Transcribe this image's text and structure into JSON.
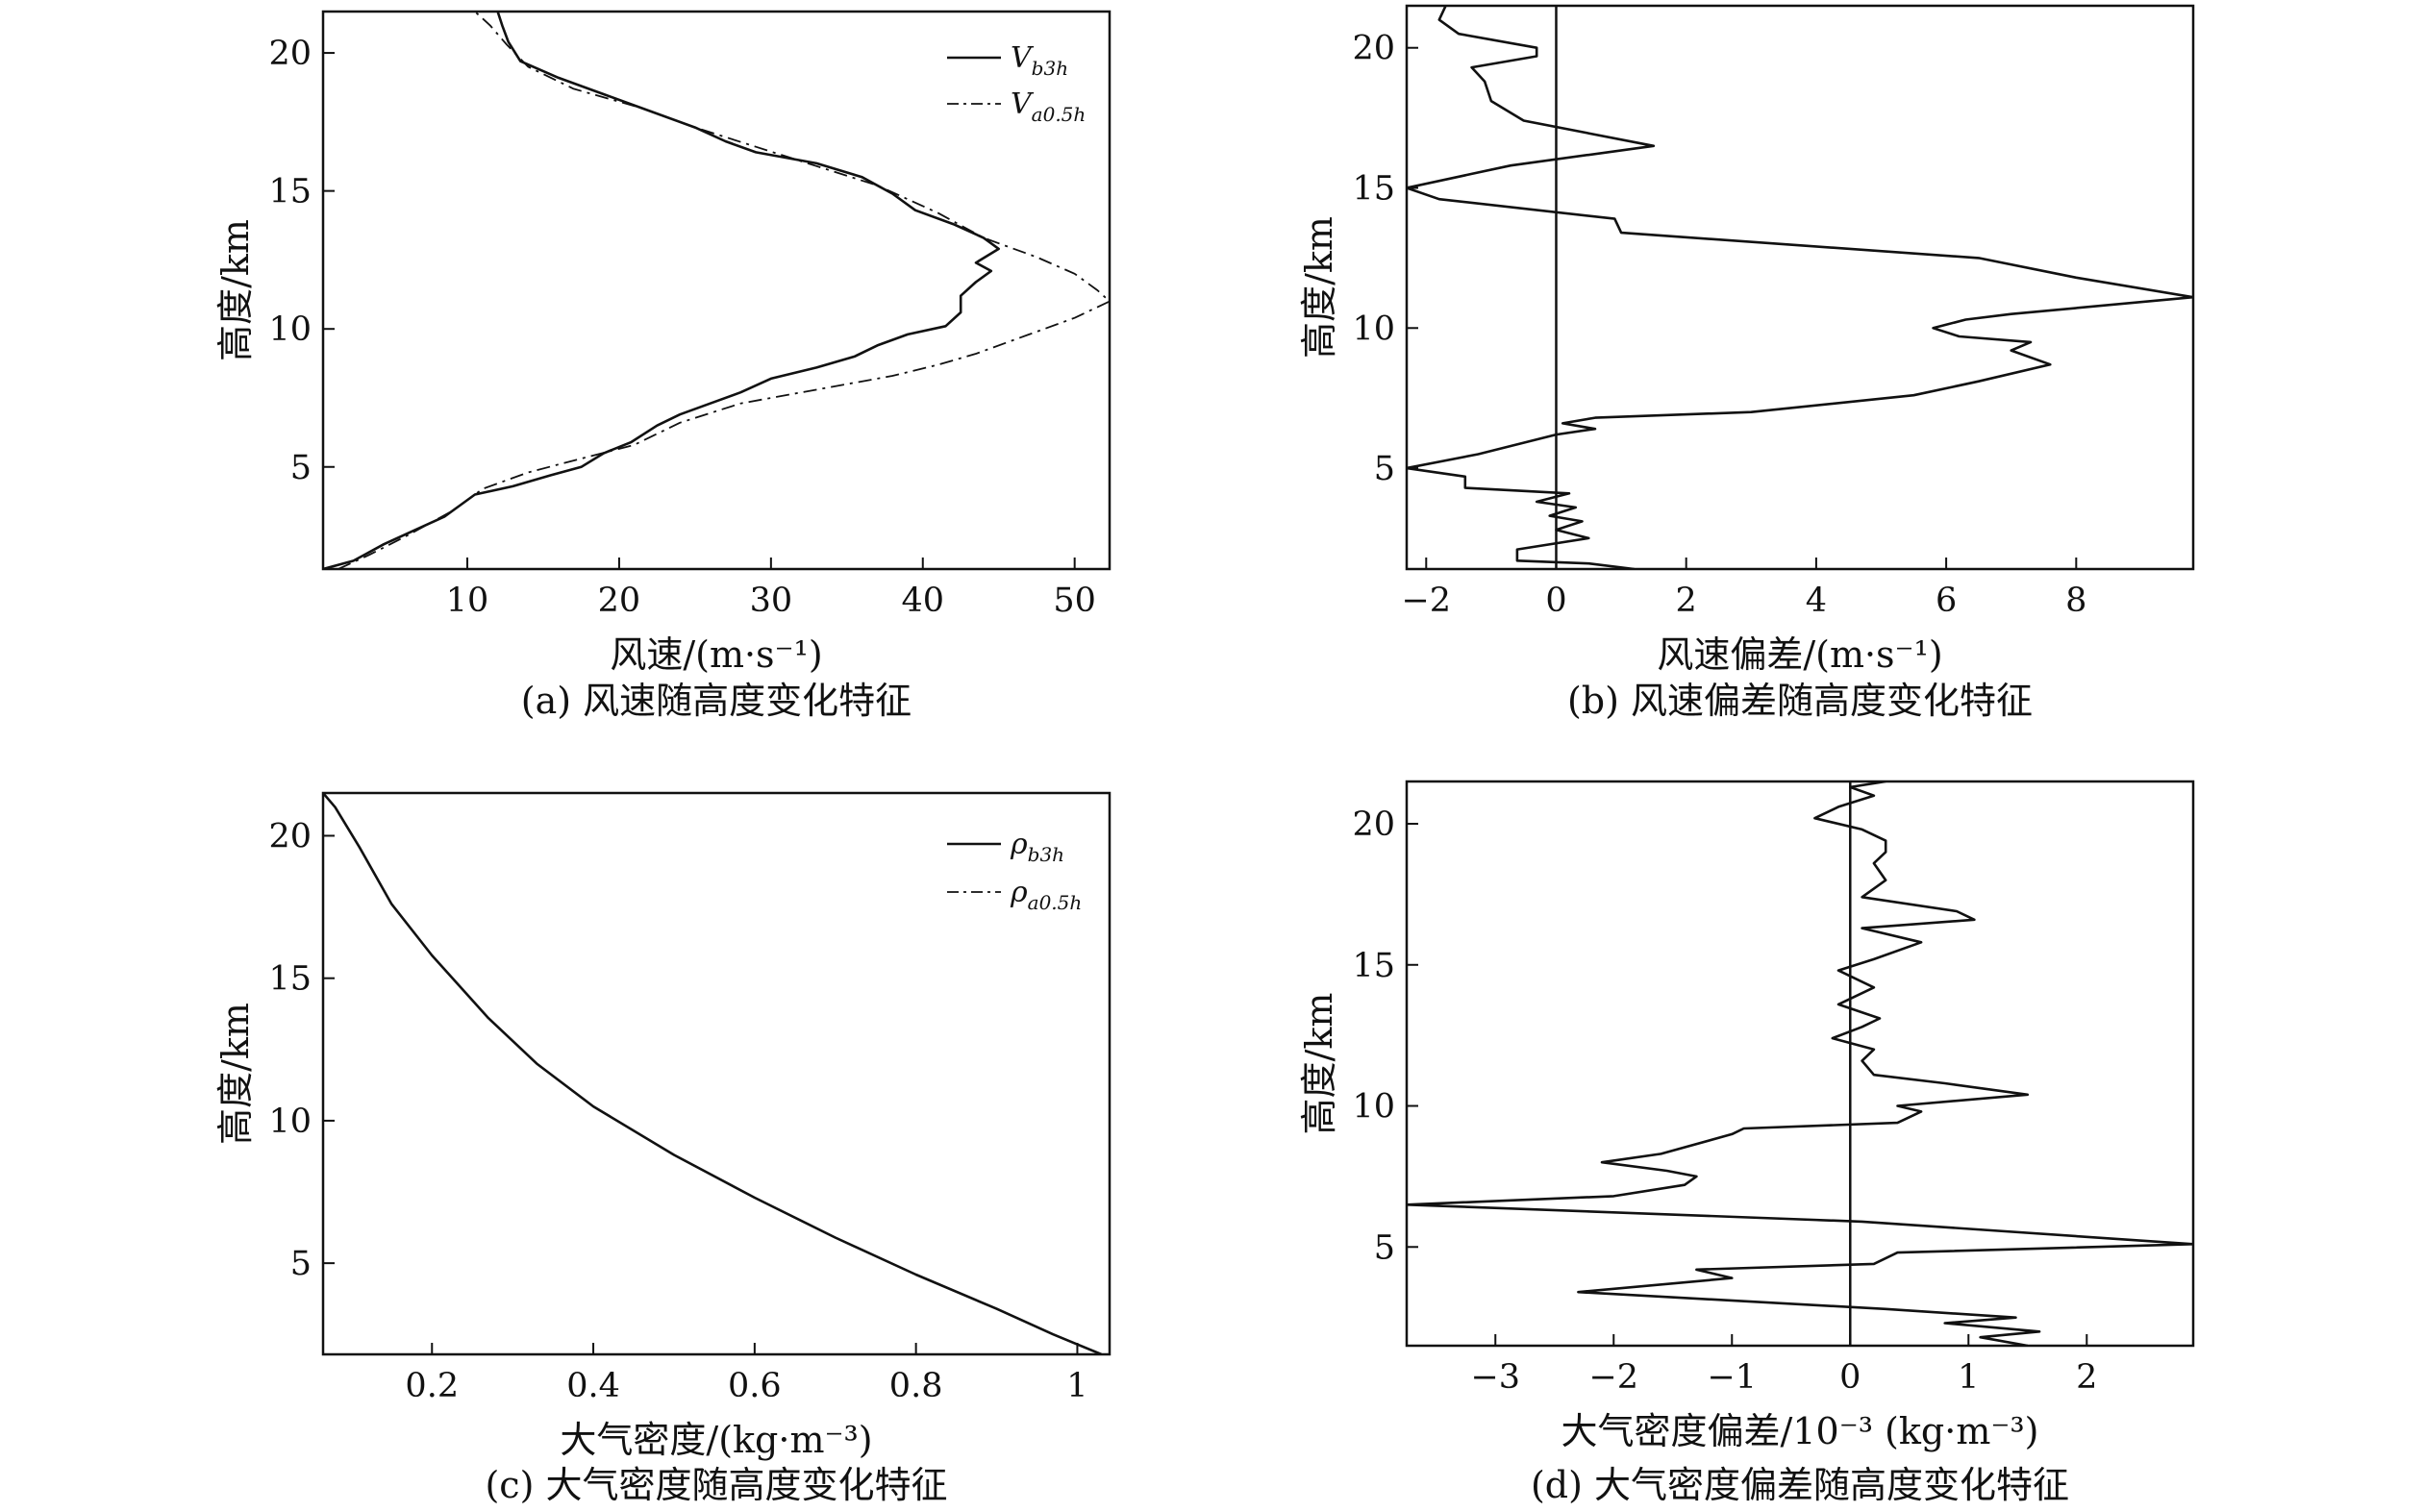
{
  "chart_data": [
    {
      "id": "a",
      "type": "line",
      "caption": "(a) 风速随高度变化特征",
      "xlabel": "风速/(m·s⁻¹)",
      "ylabel": "高度/km",
      "xlim": [
        0.5,
        52.3
      ],
      "ylim": [
        1.3,
        21.5
      ],
      "xticks": [
        10,
        20,
        30,
        40,
        50
      ],
      "yticks": [
        5,
        10,
        15,
        20
      ],
      "grid": false,
      "legend_position": "top-right",
      "series": [
        {
          "name": "Vb3h",
          "legend_main": "V",
          "legend_sub": "b3h",
          "style": "solid",
          "color": "#111111",
          "points": [
            [
              0.5,
              1.3
            ],
            [
              2.5,
              1.6
            ],
            [
              4.5,
              2.2
            ],
            [
              6.5,
              2.7
            ],
            [
              8.5,
              3.2
            ],
            [
              9.5,
              3.6
            ],
            [
              10.5,
              4.0
            ],
            [
              13,
              4.3
            ],
            [
              15.5,
              4.7
            ],
            [
              17.5,
              5.0
            ],
            [
              19,
              5.5
            ],
            [
              20.8,
              5.9
            ],
            [
              22.5,
              6.5
            ],
            [
              24,
              6.9
            ],
            [
              26,
              7.3
            ],
            [
              28,
              7.7
            ],
            [
              30,
              8.2
            ],
            [
              33,
              8.6
            ],
            [
              35.5,
              9.0
            ],
            [
              37,
              9.4
            ],
            [
              39,
              9.8
            ],
            [
              41.5,
              10.1
            ],
            [
              42.5,
              10.6
            ],
            [
              42.5,
              11.2
            ],
            [
              43.5,
              11.7
            ],
            [
              44.5,
              12.1
            ],
            [
              43.5,
              12.4
            ],
            [
              45,
              12.9
            ],
            [
              44,
              13.3
            ],
            [
              42,
              13.8
            ],
            [
              39.5,
              14.3
            ],
            [
              38,
              14.9
            ],
            [
              36,
              15.5
            ],
            [
              33,
              16.0
            ],
            [
              29,
              16.4
            ],
            [
              27,
              16.8
            ],
            [
              25,
              17.3
            ],
            [
              22,
              17.9
            ],
            [
              19,
              18.5
            ],
            [
              16,
              19.1
            ],
            [
              13.5,
              19.7
            ],
            [
              12.7,
              20.4
            ],
            [
              12.3,
              21.0
            ],
            [
              12,
              21.5
            ]
          ]
        },
        {
          "name": "Va0.5h",
          "legend_main": "V",
          "legend_sub": "a0.5h",
          "style": "dashdot",
          "color": "#111111",
          "points": [
            [
              1.5,
              1.3
            ],
            [
              3.5,
              1.8
            ],
            [
              6,
              2.5
            ],
            [
              9,
              3.4
            ],
            [
              11,
              4.2
            ],
            [
              14,
              4.8
            ],
            [
              17.5,
              5.3
            ],
            [
              21,
              5.8
            ],
            [
              24,
              6.6
            ],
            [
              28,
              7.3
            ],
            [
              34,
              7.9
            ],
            [
              38,
              8.3
            ],
            [
              41,
              8.7
            ],
            [
              43.5,
              9.1
            ],
            [
              47,
              9.8
            ],
            [
              50,
              10.4
            ],
            [
              52.3,
              11.0
            ],
            [
              51.5,
              11.4
            ],
            [
              50,
              12.0
            ],
            [
              47.5,
              12.6
            ],
            [
              44,
              13.3
            ],
            [
              41,
              14.2
            ],
            [
              37,
              15.2
            ],
            [
              33,
              15.9
            ],
            [
              29,
              16.6
            ],
            [
              25,
              17.3
            ],
            [
              21.5,
              18.0
            ],
            [
              17,
              18.7
            ],
            [
              14,
              19.5
            ],
            [
              12.6,
              20.3
            ],
            [
              11.5,
              21.0
            ],
            [
              10.5,
              21.5
            ]
          ]
        }
      ]
    },
    {
      "id": "b",
      "type": "line",
      "caption": "(b) 风速偏差随高度变化特征",
      "xlabel": "风速偏差/(m·s⁻¹)",
      "ylabel": "高度/km",
      "xlim": [
        -2.3,
        9.8
      ],
      "ylim": [
        1.4,
        21.5
      ],
      "xticks": [
        -2,
        0,
        2,
        4,
        6,
        8
      ],
      "yticks": [
        5,
        10,
        15,
        20
      ],
      "grid": false,
      "reference_line_x": 0,
      "series": [
        {
          "name": "风速偏差",
          "style": "solid",
          "color": "#111111",
          "points": [
            [
              1.2,
              1.4
            ],
            [
              0.5,
              1.6
            ],
            [
              -0.6,
              1.7
            ],
            [
              -0.6,
              2.1
            ],
            [
              0.5,
              2.5
            ],
            [
              0,
              2.8
            ],
            [
              0.4,
              3.1
            ],
            [
              -0.1,
              3.3
            ],
            [
              0.3,
              3.6
            ],
            [
              -0.3,
              3.8
            ],
            [
              0.2,
              4.1
            ],
            [
              -1.4,
              4.3
            ],
            [
              -1.4,
              4.7
            ],
            [
              -2.3,
              5.0
            ],
            [
              -1.2,
              5.5
            ],
            [
              0,
              6.2
            ],
            [
              0.6,
              6.4
            ],
            [
              0.1,
              6.6
            ],
            [
              0.6,
              6.8
            ],
            [
              3,
              7.0
            ],
            [
              5.5,
              7.6
            ],
            [
              6.5,
              8.1
            ],
            [
              7.6,
              8.7
            ],
            [
              7,
              9.2
            ],
            [
              7.3,
              9.5
            ],
            [
              6.2,
              9.7
            ],
            [
              5.8,
              10.0
            ],
            [
              6.3,
              10.3
            ],
            [
              7,
              10.5
            ],
            [
              9.8,
              11.1
            ],
            [
              8,
              11.8
            ],
            [
              6.5,
              12.5
            ],
            [
              1,
              13.4
            ],
            [
              0.9,
              13.9
            ],
            [
              -1.8,
              14.6
            ],
            [
              -2.3,
              15.0
            ],
            [
              -1.3,
              15.5
            ],
            [
              -0.7,
              15.8
            ],
            [
              1.5,
              16.5
            ],
            [
              -0.5,
              17.4
            ],
            [
              -1,
              18.1
            ],
            [
              -1.1,
              18.8
            ],
            [
              -1.3,
              19.3
            ],
            [
              -0.3,
              19.7
            ],
            [
              -0.3,
              20.0
            ],
            [
              -1.5,
              20.5
            ],
            [
              -1.8,
              21.0
            ],
            [
              -1.7,
              21.5
            ]
          ]
        }
      ]
    },
    {
      "id": "c",
      "type": "line",
      "caption": "(c) 大气密度随高度变化特征",
      "xlabel": "大气密度/(kg·m⁻³)",
      "ylabel": "高度/km",
      "xlim": [
        0.065,
        1.04
      ],
      "ylim": [
        1.8,
        21.5
      ],
      "xticks": [
        0.2,
        0.4,
        0.6,
        0.8,
        1.0
      ],
      "yticks": [
        5,
        10,
        15,
        20
      ],
      "grid": false,
      "legend_position": "top-right",
      "series": [
        {
          "name": "ρb3h",
          "legend_main": "ρ",
          "legend_sub": "b3h",
          "style": "solid",
          "color": "#111111",
          "points": [
            [
              1.03,
              1.8
            ],
            [
              0.97,
              2.5
            ],
            [
              0.9,
              3.4
            ],
            [
              0.8,
              4.6
            ],
            [
              0.7,
              5.9
            ],
            [
              0.6,
              7.3
            ],
            [
              0.5,
              8.8
            ],
            [
              0.4,
              10.5
            ],
            [
              0.33,
              12.0
            ],
            [
              0.27,
              13.6
            ],
            [
              0.2,
              15.8
            ],
            [
              0.15,
              17.6
            ],
            [
              0.11,
              19.6
            ],
            [
              0.08,
              21.0
            ],
            [
              0.065,
              21.5
            ]
          ]
        },
        {
          "name": "ρa0.5h",
          "legend_main": "ρ",
          "legend_sub": "a0.5h",
          "style": "dashdot",
          "color": "#111111",
          "points": [
            [
              1.03,
              1.8
            ],
            [
              0.97,
              2.5
            ],
            [
              0.9,
              3.4
            ],
            [
              0.8,
              4.6
            ],
            [
              0.7,
              5.9
            ],
            [
              0.6,
              7.3
            ],
            [
              0.5,
              8.8
            ],
            [
              0.4,
              10.5
            ],
            [
              0.33,
              12.0
            ],
            [
              0.27,
              13.6
            ],
            [
              0.2,
              15.8
            ],
            [
              0.15,
              17.6
            ],
            [
              0.11,
              19.6
            ],
            [
              0.08,
              21.0
            ],
            [
              0.065,
              21.5
            ]
          ]
        }
      ]
    },
    {
      "id": "d",
      "type": "line",
      "caption": "(d) 大气密度偏差随高度变化特征",
      "xlabel": "大气密度偏差/10⁻³ (kg·m⁻³)",
      "ylabel": "高度/km",
      "xlim": [
        -3.75,
        2.9
      ],
      "ylim": [
        1.5,
        21.5
      ],
      "xticks": [
        -3,
        -2,
        -1,
        0,
        1,
        2
      ],
      "yticks": [
        5,
        10,
        15,
        20
      ],
      "grid": false,
      "reference_line_x": 0,
      "series": [
        {
          "name": "大气密度偏差",
          "style": "solid",
          "color": "#111111",
          "points": [
            [
              1.5,
              1.5
            ],
            [
              1.1,
              1.8
            ],
            [
              1.6,
              2.0
            ],
            [
              0.8,
              2.3
            ],
            [
              1.4,
              2.5
            ],
            [
              0.3,
              2.8
            ],
            [
              -2.3,
              3.4
            ],
            [
              -1,
              3.9
            ],
            [
              -1.3,
              4.2
            ],
            [
              0.2,
              4.4
            ],
            [
              0.4,
              4.8
            ],
            [
              2.9,
              5.1
            ],
            [
              0.1,
              5.9
            ],
            [
              -3.75,
              6.5
            ],
            [
              -2,
              6.8
            ],
            [
              -1.4,
              7.2
            ],
            [
              -1.3,
              7.5
            ],
            [
              -1.55,
              7.7
            ],
            [
              -2.1,
              8.0
            ],
            [
              -1.6,
              8.3
            ],
            [
              -1,
              9.0
            ],
            [
              -0.9,
              9.2
            ],
            [
              0.4,
              9.4
            ],
            [
              0.6,
              9.8
            ],
            [
              0.4,
              10.0
            ],
            [
              1.5,
              10.4
            ],
            [
              0.8,
              10.8
            ],
            [
              0.2,
              11.1
            ],
            [
              0.1,
              11.6
            ],
            [
              0.2,
              12.0
            ],
            [
              -0.15,
              12.4
            ],
            [
              0.1,
              12.8
            ],
            [
              0.25,
              13.1
            ],
            [
              -0.1,
              13.6
            ],
            [
              0.2,
              14.2
            ],
            [
              -0.1,
              14.8
            ],
            [
              0.2,
              15.2
            ],
            [
              0.6,
              15.8
            ],
            [
              0.1,
              16.3
            ],
            [
              1.05,
              16.6
            ],
            [
              0.9,
              16.9
            ],
            [
              0.1,
              17.4
            ],
            [
              0.3,
              18.0
            ],
            [
              0.2,
              18.6
            ],
            [
              0.3,
              19.0
            ],
            [
              0.3,
              19.4
            ],
            [
              0.1,
              19.8
            ],
            [
              -0.3,
              20.2
            ],
            [
              -0.1,
              20.6
            ],
            [
              0.2,
              21.0
            ],
            [
              0,
              21.3
            ],
            [
              0.3,
              21.5
            ]
          ]
        }
      ]
    }
  ]
}
